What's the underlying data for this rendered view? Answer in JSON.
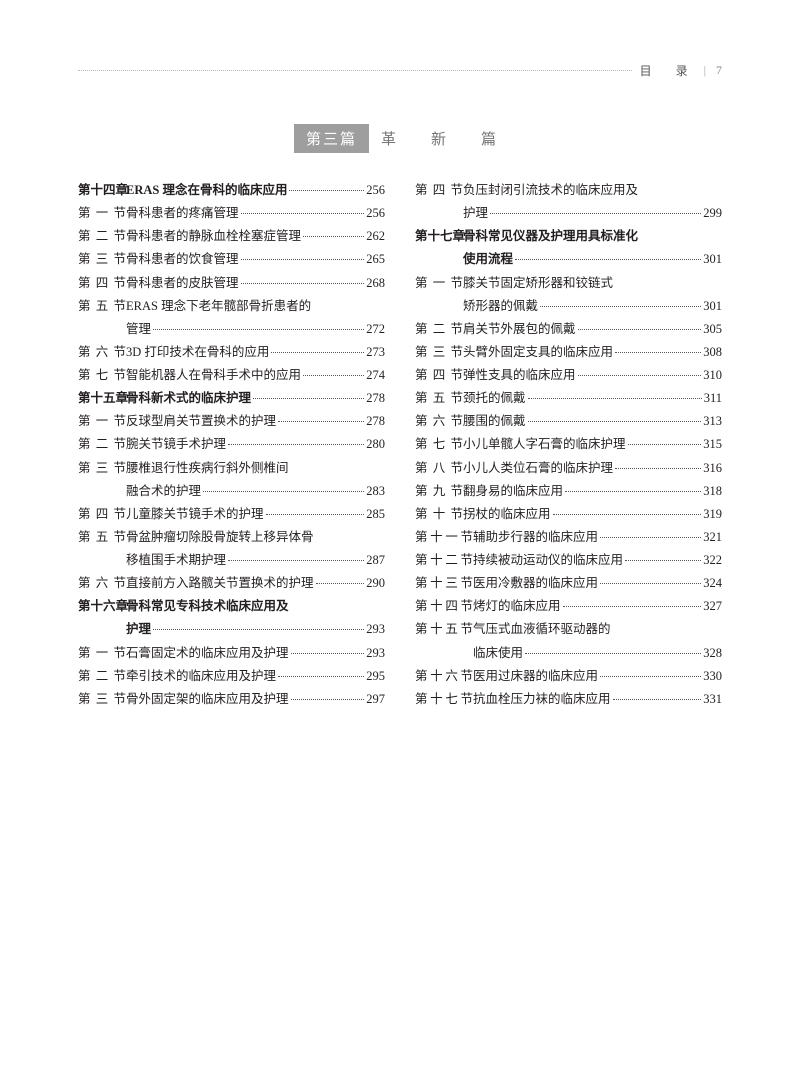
{
  "header": {
    "label": "目　录",
    "page": "7"
  },
  "part": {
    "box": "第三篇",
    "title": "革　新　篇"
  },
  "left": [
    {
      "t": "ch",
      "l": "第十四章",
      "x": "ERAS 理念在骨科的临床应用",
      "p": "256"
    },
    {
      "t": "s",
      "l": "第一节",
      "x": "骨科患者的疼痛管理",
      "p": "256"
    },
    {
      "t": "s",
      "l": "第二节",
      "x": "骨科患者的静脉血栓栓塞症管理",
      "p": "262"
    },
    {
      "t": "s",
      "l": "第三节",
      "x": "骨科患者的饮食管理",
      "p": "265"
    },
    {
      "t": "s",
      "l": "第四节",
      "x": "骨科患者的皮肤管理",
      "p": "268"
    },
    {
      "t": "s2",
      "l": "第五节",
      "x1": "ERAS 理念下老年髋部骨折患者的",
      "x2": "管理",
      "p": "272"
    },
    {
      "t": "s",
      "l": "第六节",
      "x": "3D 打印技术在骨科的应用",
      "p": "273"
    },
    {
      "t": "s",
      "l": "第七节",
      "x": "智能机器人在骨科手术中的应用",
      "p": "274"
    },
    {
      "t": "ch",
      "l": "第十五章",
      "x": "骨科新术式的临床护理",
      "p": "278"
    },
    {
      "t": "s",
      "l": "第一节",
      "x": "反球型肩关节置换术的护理",
      "p": "278"
    },
    {
      "t": "s",
      "l": "第二节",
      "x": "腕关节镜手术护理",
      "p": "280"
    },
    {
      "t": "s2",
      "l": "第三节",
      "x1": "腰椎退行性疾病行斜外侧椎间",
      "x2": "融合术的护理",
      "p": "283"
    },
    {
      "t": "s",
      "l": "第四节",
      "x": "儿童膝关节镜手术的护理",
      "p": "285"
    },
    {
      "t": "s2",
      "l": "第五节",
      "x1": "骨盆肿瘤切除股骨旋转上移异体骨",
      "x2": "移植围手术期护理",
      "p": "287"
    },
    {
      "t": "s",
      "l": "第六节",
      "x": "直接前方入路髋关节置换术的护理",
      "p": "290"
    },
    {
      "t": "ch2",
      "l": "第十六章",
      "x1": "骨科常见专科技术临床应用及",
      "x2": "护理",
      "p": "293"
    },
    {
      "t": "s",
      "l": "第一节",
      "x": "石膏固定术的临床应用及护理",
      "p": "293"
    },
    {
      "t": "s",
      "l": "第二节",
      "x": "牵引技术的临床应用及护理",
      "p": "295"
    },
    {
      "t": "s",
      "l": "第三节",
      "x": "骨外固定架的临床应用及护理",
      "p": "297"
    }
  ],
  "right": [
    {
      "t": "s2",
      "l": "第四节",
      "x1": "负压封闭引流技术的临床应用及",
      "x2": "护理",
      "p": "299"
    },
    {
      "t": "ch2",
      "l": "第十七章",
      "x1": "骨科常见仪器及护理用具标准化",
      "x2": "使用流程",
      "p": "301"
    },
    {
      "t": "s2",
      "l": "第一节",
      "x1": "膝关节固定矫形器和铰链式",
      "x2": "矫形器的佩戴",
      "p": "301"
    },
    {
      "t": "s",
      "l": "第二节",
      "x": "肩关节外展包的佩戴",
      "p": "305"
    },
    {
      "t": "s",
      "l": "第三节",
      "x": "头臂外固定支具的临床应用",
      "p": "308"
    },
    {
      "t": "s",
      "l": "第四节",
      "x": "弹性支具的临床应用",
      "p": "310"
    },
    {
      "t": "s",
      "l": "第五节",
      "x": "颈托的佩戴",
      "p": "311"
    },
    {
      "t": "s",
      "l": "第六节",
      "x": "腰围的佩戴",
      "p": "313"
    },
    {
      "t": "s",
      "l": "第七节",
      "x": "小儿单髋人字石膏的临床护理",
      "p": "315"
    },
    {
      "t": "s",
      "l": "第八节",
      "x": "小儿人类位石膏的临床护理",
      "p": "316"
    },
    {
      "t": "s",
      "l": "第九节",
      "x": "翻身易的临床应用",
      "p": "318"
    },
    {
      "t": "s",
      "l": "第十节",
      "x": "拐杖的临床应用",
      "p": "319"
    },
    {
      "t": "s",
      "l": "第十一节",
      "x": "辅助步行器的临床应用",
      "p": "321",
      "w": true
    },
    {
      "t": "s",
      "l": "第十二节",
      "x": "持续被动运动仪的临床应用",
      "p": "322",
      "w": true
    },
    {
      "t": "s",
      "l": "第十三节",
      "x": "医用冷敷器的临床应用",
      "p": "324",
      "w": true
    },
    {
      "t": "s",
      "l": "第十四节",
      "x": "烤灯的临床应用",
      "p": "327",
      "w": true
    },
    {
      "t": "s2",
      "l": "第十五节",
      "x1": "气压式血液循环驱动器的",
      "x2": "临床使用",
      "p": "328",
      "w": true
    },
    {
      "t": "s",
      "l": "第十六节",
      "x": "医用过床器的临床应用",
      "p": "330",
      "w": true
    },
    {
      "t": "s",
      "l": "第十七节",
      "x": "抗血栓压力袜的临床应用",
      "p": "331",
      "w": true
    }
  ]
}
